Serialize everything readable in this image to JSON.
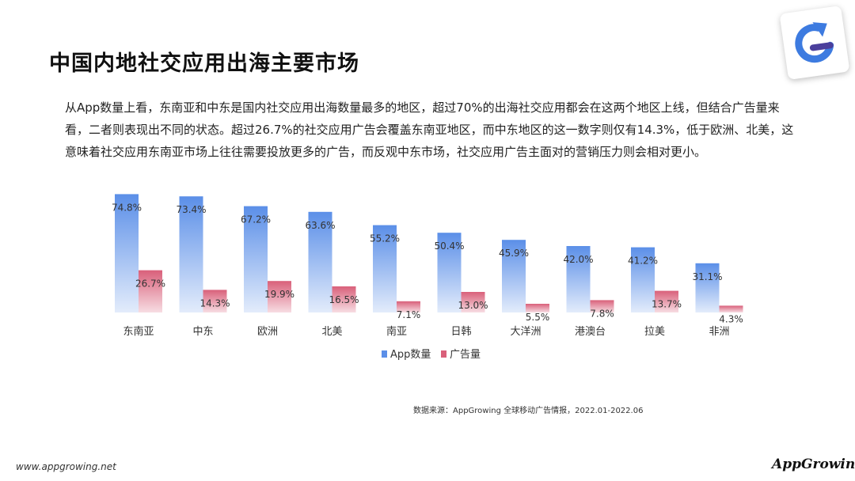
{
  "page": {
    "title": "中国内地社交应用出海主要市场",
    "description": "从App数量上看，东南亚和中东是国内社交应用出海数量最多的地区，超过70%的出海社交应用都会在这两个地区上线，但结合广告量来看，二者则表现出不同的状态。超过26.7%的社交应用广告会覆盖东南亚地区，而中东地区的这一数字则仅有14.3%，低于欧洲、北美，这意味着社交应用东南亚市场上往往需要投放更多的广告，而反观中东市场，社交应用广告主面对的营销压力则会相对更小。",
    "source": "数据来源：AppGrowing 全球移动广告情报，2022.01-2022.06",
    "url": "www.appgrowing.net",
    "brand": "AppGrowing",
    "logo_icon": "appgrowing-logo-icon"
  },
  "colors": {
    "app_top": "#5b8fe8",
    "app_bottom": "#e3ecfb",
    "ad_top": "#d9607a",
    "ad_bottom": "#f7dde3"
  },
  "chart_data": {
    "type": "bar",
    "categories": [
      "东南亚",
      "中东",
      "欧洲",
      "北美",
      "南亚",
      "日韩",
      "大洋洲",
      "港澳台",
      "拉美",
      "非洲"
    ],
    "series": [
      {
        "name": "App数量",
        "values": [
          74.8,
          73.4,
          67.2,
          63.6,
          55.2,
          50.4,
          45.9,
          42.0,
          41.2,
          31.1
        ]
      },
      {
        "name": "广告量",
        "values": [
          26.7,
          14.3,
          19.9,
          16.5,
          7.1,
          13.0,
          5.5,
          7.8,
          13.7,
          4.3
        ]
      }
    ],
    "value_labels": {
      "App数量": [
        "74.8%",
        "73.4%",
        "67.2%",
        "63.6%",
        "55.2%",
        "50.4%",
        "45.9%",
        "42.0%",
        "41.2%",
        "31.1%"
      ],
      "广告量": [
        "26.7%",
        "14.3%",
        "19.9%",
        "16.5%",
        "7.1%",
        "13.0%",
        "5.5%",
        "7.8%",
        "13.7%",
        "4.3%"
      ]
    },
    "ylim": [
      0,
      80
    ],
    "grid": false,
    "legend": "bottom-center"
  }
}
